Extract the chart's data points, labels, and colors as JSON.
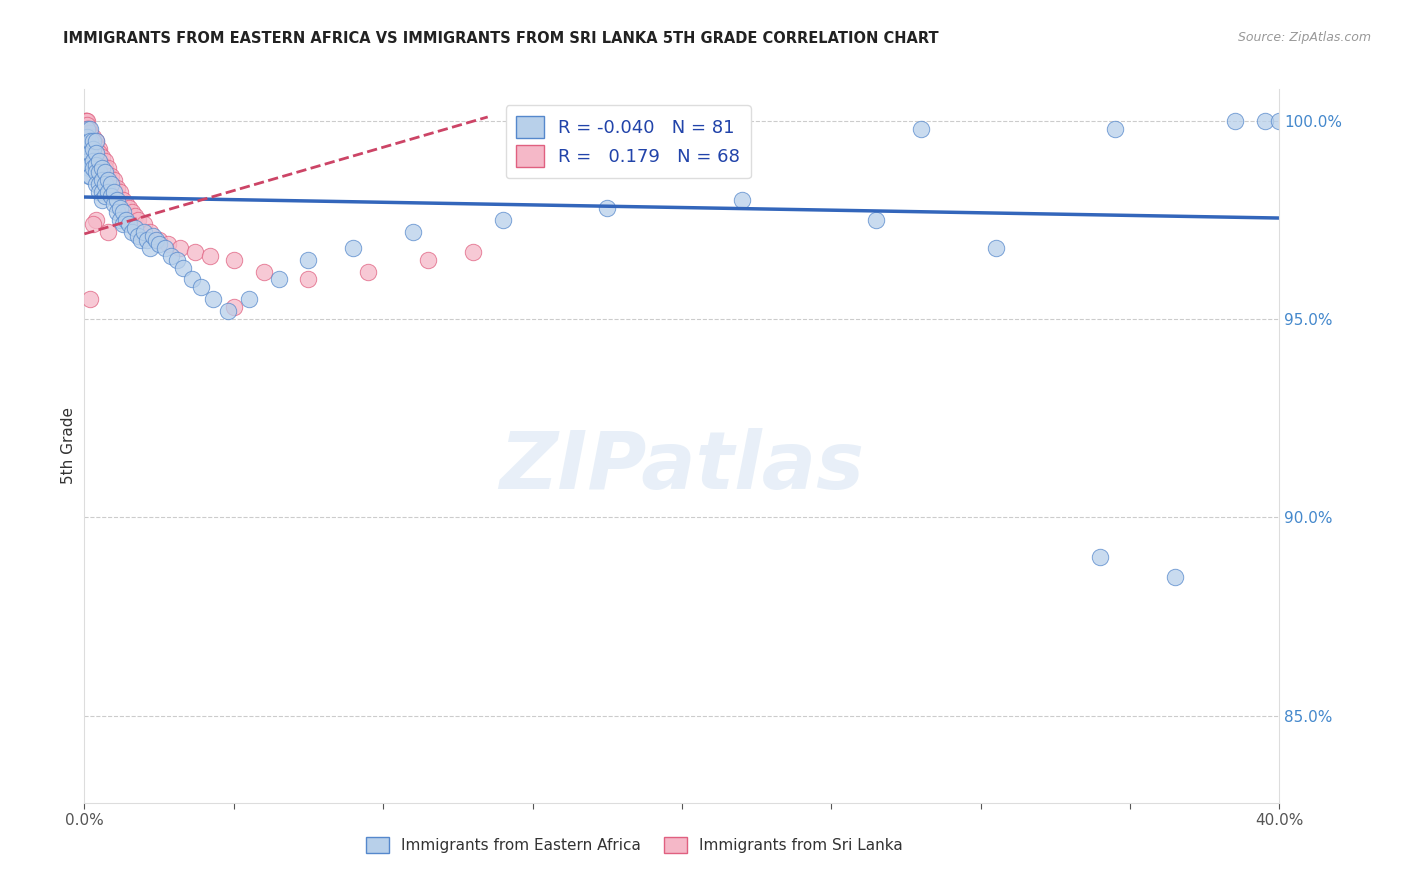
{
  "title": "IMMIGRANTS FROM EASTERN AFRICA VS IMMIGRANTS FROM SRI LANKA 5TH GRADE CORRELATION CHART",
  "source": "Source: ZipAtlas.com",
  "ylabel": "5th Grade",
  "xlim": [
    0.0,
    0.4
  ],
  "ylim": [
    0.828,
    1.008
  ],
  "blue_R": -0.04,
  "blue_N": 81,
  "pink_R": 0.179,
  "pink_N": 68,
  "blue_color": "#b8d0ea",
  "blue_edge_color": "#5588cc",
  "blue_line_color": "#3366bb",
  "pink_color": "#f5b8c8",
  "pink_edge_color": "#e06080",
  "pink_line_color": "#cc4466",
  "watermark": "ZIPatlas",
  "legend_label_blue": "Immigrants from Eastern Africa",
  "legend_label_pink": "Immigrants from Sri Lanka",
  "blue_line_x0": 0.0,
  "blue_line_y0": 0.9808,
  "blue_line_x1": 0.4,
  "blue_line_y1": 0.9755,
  "pink_line_x0": 0.0,
  "pink_line_y0": 0.9715,
  "pink_line_x1": 0.135,
  "pink_line_y1": 1.001,
  "blue_scatter_x": [
    0.0008,
    0.001,
    0.001,
    0.001,
    0.0012,
    0.0015,
    0.0015,
    0.002,
    0.002,
    0.002,
    0.002,
    0.002,
    0.003,
    0.003,
    0.003,
    0.003,
    0.004,
    0.004,
    0.004,
    0.004,
    0.004,
    0.005,
    0.005,
    0.005,
    0.005,
    0.006,
    0.006,
    0.006,
    0.006,
    0.007,
    0.007,
    0.007,
    0.008,
    0.008,
    0.009,
    0.009,
    0.01,
    0.01,
    0.011,
    0.011,
    0.012,
    0.012,
    0.013,
    0.013,
    0.014,
    0.015,
    0.016,
    0.017,
    0.018,
    0.019,
    0.02,
    0.021,
    0.022,
    0.023,
    0.024,
    0.025,
    0.027,
    0.029,
    0.031,
    0.033,
    0.036,
    0.039,
    0.043,
    0.048,
    0.055,
    0.065,
    0.075,
    0.09,
    0.11,
    0.14,
    0.175,
    0.22,
    0.265,
    0.305,
    0.34,
    0.365,
    0.385,
    0.395,
    0.4,
    0.345,
    0.28
  ],
  "blue_scatter_y": [
    0.998,
    0.996,
    0.994,
    0.992,
    0.99,
    0.988,
    0.986,
    0.998,
    0.995,
    0.992,
    0.989,
    0.986,
    0.995,
    0.993,
    0.99,
    0.988,
    0.995,
    0.992,
    0.989,
    0.987,
    0.984,
    0.99,
    0.987,
    0.984,
    0.982,
    0.988,
    0.985,
    0.982,
    0.98,
    0.987,
    0.984,
    0.981,
    0.985,
    0.982,
    0.984,
    0.981,
    0.982,
    0.979,
    0.98,
    0.977,
    0.978,
    0.975,
    0.977,
    0.974,
    0.975,
    0.974,
    0.972,
    0.973,
    0.971,
    0.97,
    0.972,
    0.97,
    0.968,
    0.971,
    0.97,
    0.969,
    0.968,
    0.966,
    0.965,
    0.963,
    0.96,
    0.958,
    0.955,
    0.952,
    0.955,
    0.96,
    0.965,
    0.968,
    0.972,
    0.975,
    0.978,
    0.98,
    0.975,
    0.968,
    0.89,
    0.885,
    1.0,
    1.0,
    1.0,
    0.998,
    0.998
  ],
  "pink_scatter_x": [
    0.0005,
    0.0005,
    0.0007,
    0.001,
    0.001,
    0.001,
    0.001,
    0.001,
    0.0012,
    0.0012,
    0.0015,
    0.0015,
    0.002,
    0.002,
    0.002,
    0.002,
    0.002,
    0.003,
    0.003,
    0.003,
    0.003,
    0.003,
    0.004,
    0.004,
    0.004,
    0.004,
    0.005,
    0.005,
    0.005,
    0.005,
    0.006,
    0.006,
    0.006,
    0.007,
    0.007,
    0.007,
    0.008,
    0.008,
    0.009,
    0.009,
    0.01,
    0.01,
    0.011,
    0.012,
    0.013,
    0.014,
    0.015,
    0.016,
    0.017,
    0.018,
    0.02,
    0.022,
    0.025,
    0.028,
    0.032,
    0.037,
    0.042,
    0.05,
    0.06,
    0.075,
    0.095,
    0.115,
    0.13,
    0.05,
    0.008,
    0.004,
    0.003,
    0.002
  ],
  "pink_scatter_y": [
    1.0,
    1.0,
    1.0,
    1.0,
    0.999,
    0.998,
    0.997,
    0.996,
    0.998,
    0.997,
    0.998,
    0.997,
    0.997,
    0.996,
    0.995,
    0.994,
    0.993,
    0.996,
    0.995,
    0.994,
    0.993,
    0.992,
    0.995,
    0.994,
    0.992,
    0.99,
    0.993,
    0.992,
    0.99,
    0.988,
    0.991,
    0.989,
    0.987,
    0.99,
    0.988,
    0.986,
    0.988,
    0.986,
    0.986,
    0.984,
    0.985,
    0.983,
    0.983,
    0.982,
    0.98,
    0.979,
    0.978,
    0.977,
    0.976,
    0.975,
    0.974,
    0.972,
    0.97,
    0.969,
    0.968,
    0.967,
    0.966,
    0.965,
    0.962,
    0.96,
    0.962,
    0.965,
    0.967,
    0.953,
    0.972,
    0.975,
    0.974,
    0.955
  ]
}
